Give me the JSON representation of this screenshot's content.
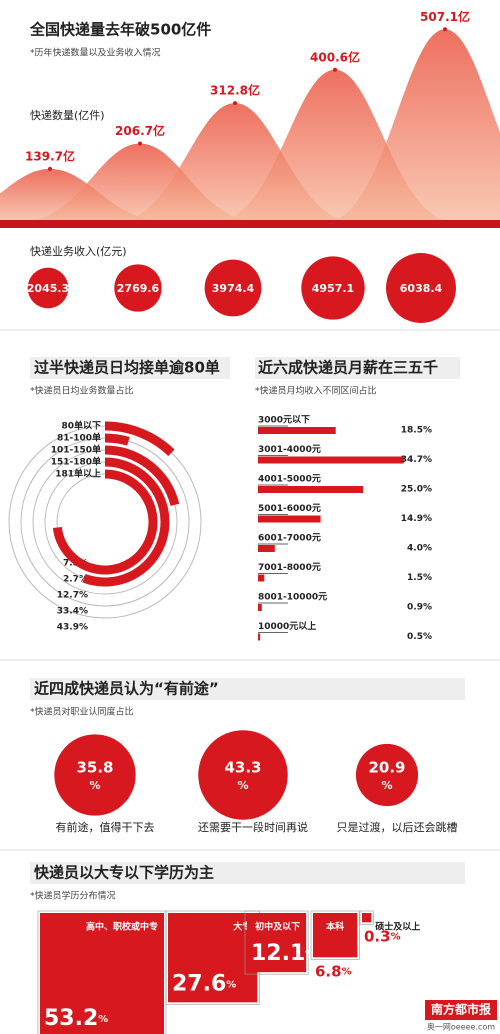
{
  "volume": {
    "title": "全国快递量去年破500亿件",
    "subtitle": "*历年快递数量以及业务收入情况",
    "label": "快递数量(亿件)",
    "values": [
      139.7,
      206.7,
      312.8,
      400.6,
      507.1
    ],
    "value_labels": [
      "139.7亿",
      "206.7亿",
      "312.8亿",
      "400.6亿",
      "507.1亿"
    ]
  },
  "revenue": {
    "label": "快递业务收入(亿元)",
    "values": [
      2045.3,
      2769.6,
      3974.4,
      4957.1,
      6038.4
    ]
  },
  "orders": {
    "title": "过半快递员日均接单逾80单",
    "subtitle": "*快递员日均业务数量占比",
    "categories": [
      "80单以下",
      "81-100单",
      "101-150单",
      "151-180单",
      "181单以上"
    ],
    "values": [
      7.3,
      2.7,
      12.7,
      33.4,
      43.9
    ],
    "value_labels": [
      "7.3%",
      "2.7%",
      "12.7%",
      "33.4%",
      "43.9%"
    ]
  },
  "salary": {
    "title": "近六成快递员月薪在三五千",
    "subtitle": "*快递员月均收入不同区间占比",
    "categories": [
      "3000元以下",
      "3001-4000元",
      "4001-5000元",
      "5001-6000元",
      "6001-7000元",
      "7001-8000元",
      "8001-10000元",
      "10000元以上"
    ],
    "values": [
      18.5,
      34.7,
      25.0,
      14.9,
      4.0,
      1.5,
      0.9,
      0.5
    ],
    "value_labels": [
      "18.5%",
      "34.7%",
      "25.0%",
      "14.9%",
      "4.0%",
      "1.5%",
      "0.9%",
      "0.5%"
    ]
  },
  "attitude": {
    "title": "近四成快递员认为“有前途”",
    "subtitle": "*快递员对职业认同度占比",
    "unit": "%",
    "categories": [
      "有前途，值得干下去",
      "还需要干一段时间再说",
      "只是过渡，以后还会跳槽"
    ],
    "values": [
      35.8,
      43.3,
      20.9
    ]
  },
  "education": {
    "title": "快递员以大专以下学历为主",
    "subtitle": "*快递员学历分布情况",
    "unit": "%",
    "categories": [
      "高中、职校或中专",
      "大专",
      "初中及以下",
      "本科",
      "硕士及以上"
    ],
    "values": [
      53.2,
      27.6,
      12.1,
      6.8,
      0.3
    ]
  },
  "footer": {
    "logo": "南方都市报",
    "site": "奥一网oeeee.com"
  }
}
